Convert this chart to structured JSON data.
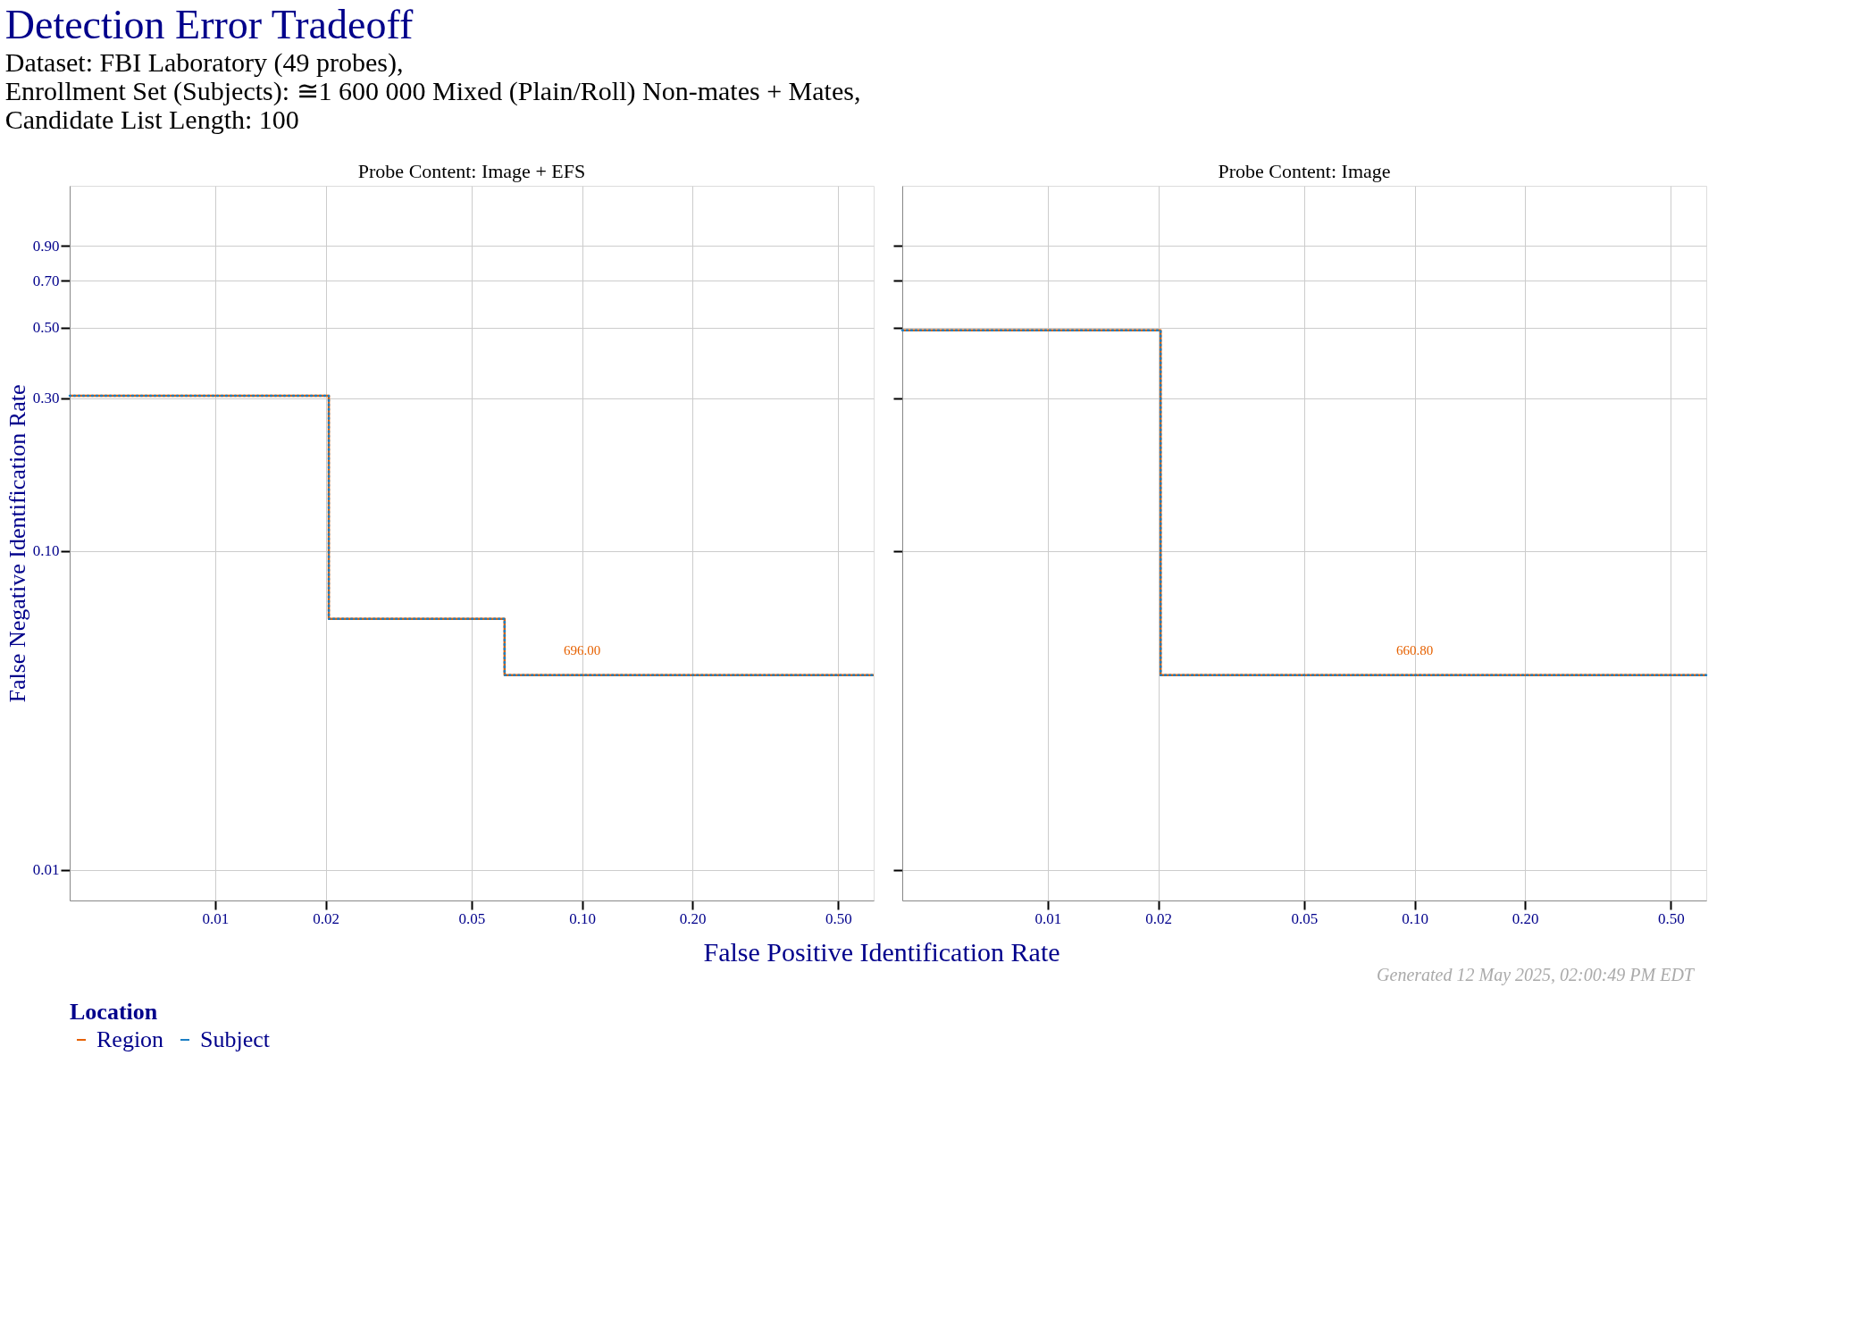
{
  "chart_data": [
    {
      "type": "step",
      "title": "Detection Error Tradeoff",
      "subtitle": [
        "Dataset: FBI Laboratory (49 probes),",
        "Enrollment Set (Subjects): ≅1 600 000 Mixed (Plain/Roll) Non-mates + Mates,",
        "Candidate List Length: 100"
      ],
      "xlabel": "False Positive Identification Rate",
      "ylabel": "False Negative Identification Rate",
      "legend_title": "Location",
      "legend": "bottom",
      "log": "xy",
      "grid": true,
      "xlim": [
        0.00401,
        0.624
      ],
      "ylim": [
        0.00803,
        1.39
      ],
      "xticks": [
        0.01,
        0.02,
        0.05,
        {
          "value": 0.1,
          "label": "0.10"
        },
        {
          "value": 0.2,
          "label": "0.20"
        },
        {
          "value": 0.5,
          "label": "0.50"
        }
      ],
      "yticks": [
        0.01,
        {
          "value": 0.1,
          "label": "0.10"
        },
        {
          "value": 0.3,
          "label": "0.30"
        },
        {
          "value": 0.5,
          "label": "0.50"
        },
        {
          "value": 0.7,
          "label": "0.70"
        },
        {
          "value": 0.9,
          "label": "0.90"
        }
      ],
      "series": [
        {
          "name": "Region",
          "color": "#e66100",
          "line_style": "solid",
          "x": [
            0.00401,
            0.0204,
            0.0615,
            0.624
          ],
          "values": [
            0.306,
            0.0612,
            0.0408,
            0.0408
          ]
        },
        {
          "name": "Subject",
          "color": "#1b7fc4",
          "line_style": "dotted",
          "x": [
            0.00401,
            0.0204,
            0.0615,
            0.62
          ],
          "values": [
            0.306,
            0.0612,
            0.0408,
            0.0408
          ]
        }
      ],
      "annotations": [
        "Probe Content: Image + EFS",
        {
          "text": "696.00",
          "x": 0.1,
          "y": 0.0408
        }
      ]
    },
    {
      "type": "step",
      "log": "xy",
      "grid": true,
      "tick_labels": "x",
      "xlim": [
        0.00401,
        0.624
      ],
      "ylim": [
        0.00803,
        1.39
      ],
      "xticks": [
        0.01,
        0.02,
        0.05,
        {
          "value": 0.1,
          "label": "0.10"
        },
        {
          "value": 0.2,
          "label": "0.20"
        },
        {
          "value": 0.5,
          "label": "0.50"
        }
      ],
      "yticks": [
        0.01,
        {
          "value": 0.1,
          "label": "0.10"
        },
        {
          "value": 0.3,
          "label": "0.30"
        },
        {
          "value": 0.5,
          "label": "0.50"
        },
        {
          "value": 0.7,
          "label": "0.70"
        },
        {
          "value": 0.9,
          "label": "0.90"
        }
      ],
      "series": [
        {
          "name": "Region",
          "color": "#e66100",
          "line_style": "solid",
          "x": [
            0.00401,
            0.0203,
            0.624
          ],
          "values": [
            0.49,
            0.0408,
            0.0408
          ]
        },
        {
          "name": "Subject",
          "color": "#1b7fc4",
          "line_style": "dotted",
          "x": [
            0.00401,
            0.0203,
            0.624
          ],
          "values": [
            0.49,
            0.0408,
            0.0408
          ]
        }
      ],
      "annotations": [
        "Probe Content: Image",
        {
          "text": "660.80",
          "x": 0.1,
          "y": 0.0408
        },
        "Generated 12 May 2025, 02:00:49 PM EDT"
      ]
    }
  ]
}
